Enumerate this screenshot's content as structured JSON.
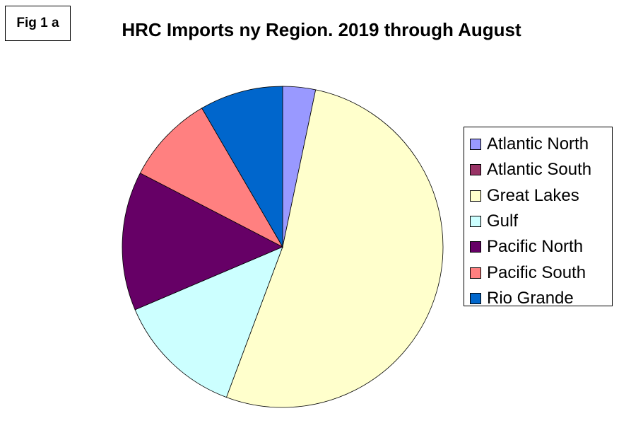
{
  "figure_label": "Fig 1 a",
  "chart_data": {
    "type": "pie",
    "title": "HRC Imports ny Region. 2019 through August",
    "legend_position": "right",
    "slices": [
      {
        "name": "Atlantic North",
        "value": 3.3,
        "color": "#9999ff"
      },
      {
        "name": "Atlantic South",
        "value": 0.0,
        "color": "#993366"
      },
      {
        "name": "Great Lakes",
        "value": 52.4,
        "color": "#ffffcc"
      },
      {
        "name": "Gulf",
        "value": 12.9,
        "color": "#ccffff"
      },
      {
        "name": "Pacific North",
        "value": 14.0,
        "color": "#660066"
      },
      {
        "name": "Pacific South",
        "value": 9.0,
        "color": "#ff8080"
      },
      {
        "name": "Rio Grande",
        "value": 8.4,
        "color": "#0066cc"
      }
    ]
  }
}
